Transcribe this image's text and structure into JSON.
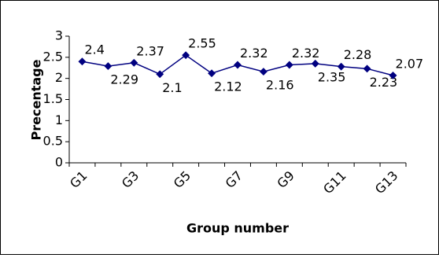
{
  "chart_data": {
    "type": "line",
    "categories": [
      "G1",
      null,
      "G3",
      null,
      "G5",
      null,
      "G7",
      null,
      "G9",
      null,
      "G11",
      null,
      "G13"
    ],
    "series": [
      {
        "color": "#000080",
        "values": [
          2.4,
          2.29,
          2.37,
          2.1,
          2.55,
          2.12,
          2.32,
          2.16,
          2.32,
          2.35,
          2.28,
          2.23,
          2.07
        ]
      }
    ],
    "ylim": [
      0,
      3
    ],
    "yticks": [
      0,
      0.5,
      1,
      1.5,
      2,
      2.5,
      3
    ],
    "x_label": "Group number",
    "y_label": "Precentage"
  }
}
